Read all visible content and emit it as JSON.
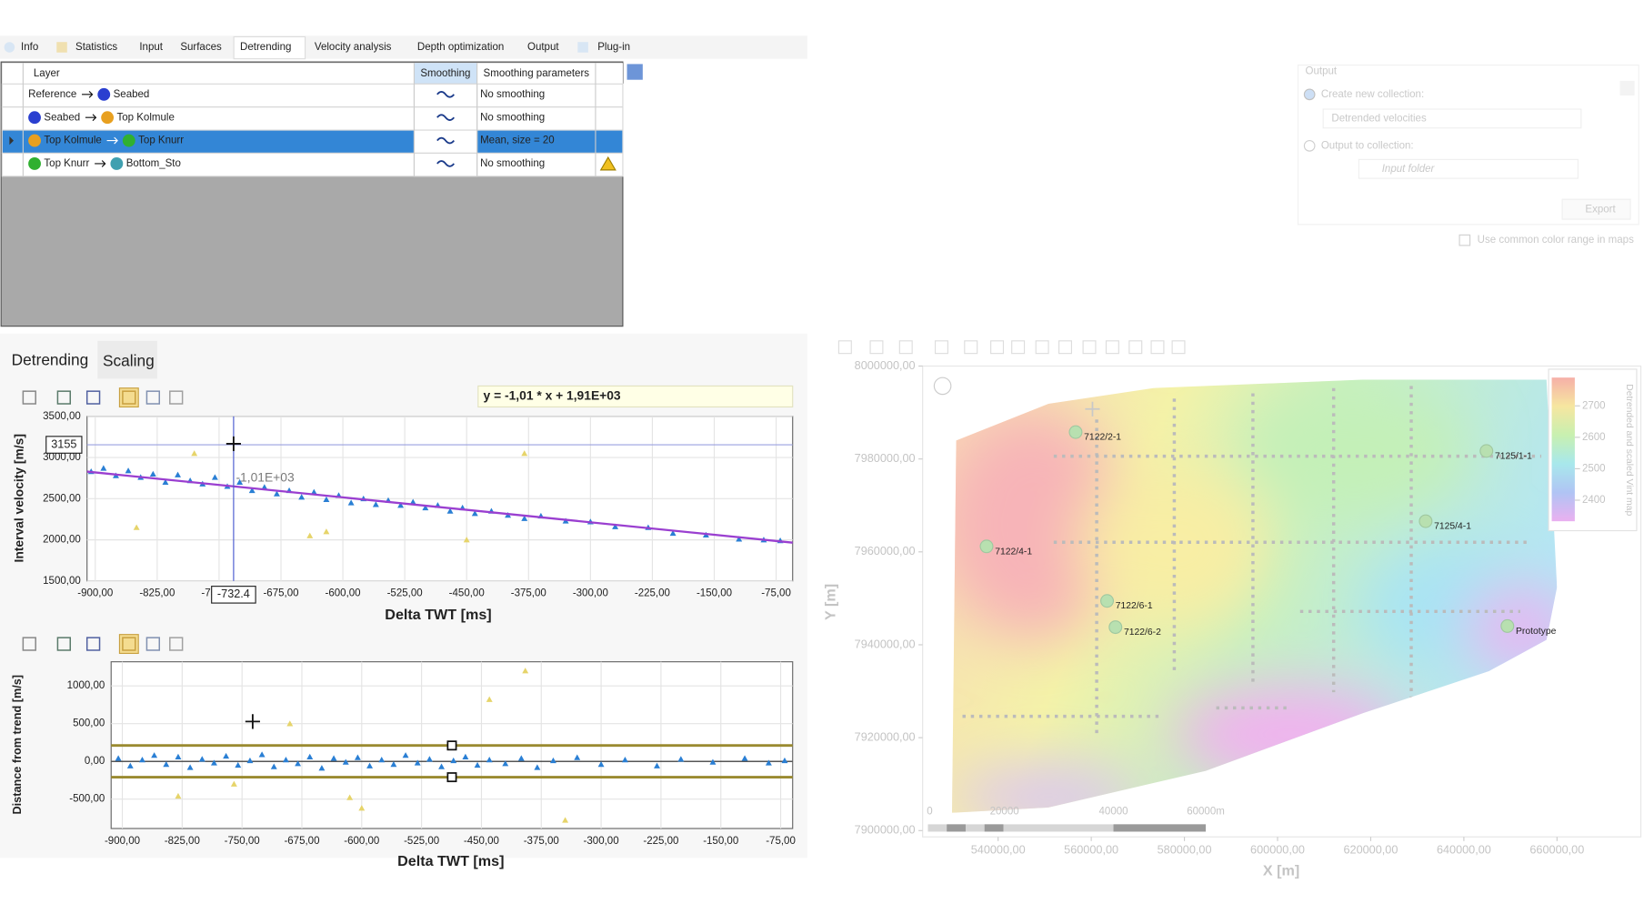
{
  "tabs": [
    "Info",
    "Statistics",
    "Input",
    "Surfaces",
    "Detrending",
    "Velocity analysis",
    "Depth optimization",
    "Output",
    "Plug-in"
  ],
  "layer_table": {
    "headers": [
      "Layer",
      "Smoothing",
      "Smoothing parameters"
    ],
    "rows": [
      {
        "from": "Reference",
        "to": "Seabed",
        "params": "No smoothing"
      },
      {
        "from": "Seabed",
        "to": "Top Kolmule",
        "params": "No smoothing"
      },
      {
        "from": "Top Kolmule",
        "to": "Top Knurr",
        "params": "Mean, size = 20"
      },
      {
        "from": "Top Knurr",
        "to": "Bottom_Sto",
        "params": "No smoothing"
      }
    ]
  },
  "subtabs": [
    "Detrending",
    "Scaling"
  ],
  "trend_chart": {
    "type": "scatter",
    "equation": "y = -1,01 * x + 1,91E+03",
    "annotation": "-1,01E+03",
    "x_label": "Delta TWT [ms]",
    "y_label": "Interval velocity [m/s]",
    "xlim": [
      -910,
      -55
    ],
    "ylim": [
      1500,
      3500
    ],
    "xticks": [
      {
        "value": -900,
        "label": "-900,00"
      },
      {
        "value": -825,
        "label": "-825,00"
      },
      {
        "value": -750,
        "label": "-750,00"
      },
      {
        "value": -675,
        "label": "-675,00"
      },
      {
        "value": -600,
        "label": "-600,00"
      },
      {
        "value": -525,
        "label": "-525,00"
      },
      {
        "value": -450,
        "label": "-450,00"
      },
      {
        "value": -375,
        "label": "-375,00"
      },
      {
        "value": -300,
        "label": "-300,00"
      },
      {
        "value": -225,
        "label": "-225,00"
      },
      {
        "value": -150,
        "label": "-150,00"
      },
      {
        "value": -75,
        "label": "-75,00"
      }
    ],
    "yticks": [
      {
        "value": 1500,
        "label": "1500,00"
      },
      {
        "value": 2000,
        "label": "2000,00"
      },
      {
        "value": 2500,
        "label": "2500,00"
      },
      {
        "value": 3000,
        "label": "3000,00"
      },
      {
        "value": 3500,
        "label": "3500,00"
      }
    ],
    "grid": true,
    "cursor": {
      "x": -732.4,
      "y": 3155
    },
    "trend_line": {
      "color": "#9a3fd0",
      "x": [
        -910,
        -55
      ],
      "y": [
        2829,
        1966
      ]
    },
    "series": [
      {
        "color": "#2a7fd4",
        "x": [
          -905,
          -890,
          -875,
          -860,
          -845,
          -830,
          -815,
          -800,
          -785,
          -770,
          -755,
          -740,
          -725,
          -710,
          -695,
          -680,
          -665,
          -650,
          -635,
          -620,
          -605,
          -590,
          -575,
          -560,
          -545,
          -530,
          -515,
          -500,
          -485,
          -470,
          -455,
          -440,
          -420,
          -400,
          -380,
          -360,
          -330,
          -300,
          -270,
          -230,
          -200,
          -160,
          -120,
          -90,
          -70
        ],
        "y": [
          2830,
          2870,
          2780,
          2840,
          2760,
          2800,
          2700,
          2790,
          2720,
          2680,
          2760,
          2650,
          2700,
          2600,
          2640,
          2560,
          2600,
          2520,
          2580,
          2490,
          2540,
          2450,
          2500,
          2430,
          2480,
          2420,
          2460,
          2390,
          2420,
          2350,
          2390,
          2320,
          2350,
          2300,
          2260,
          2290,
          2230,
          2220,
          2160,
          2150,
          2080,
          2060,
          2010,
          2000,
          1990
        ]
      },
      {
        "color": "#e6d46a",
        "x": [
          -850,
          -780,
          -640,
          -620,
          -450,
          -380
        ],
        "y": [
          2150,
          3050,
          2050,
          2100,
          2000,
          3050
        ]
      }
    ]
  },
  "residual_chart": {
    "type": "scatter",
    "x_label": "Delta TWT [ms]",
    "y_label": "Distance from trend [m/s]",
    "xlim": [
      -914,
      -60
    ],
    "ylim": [
      -890,
      1320
    ],
    "xticks": [
      {
        "value": -900,
        "label": "-900,00"
      },
      {
        "value": -825,
        "label": "-825,00"
      },
      {
        "value": -750,
        "label": "-750,00"
      },
      {
        "value": -675,
        "label": "-675,00"
      },
      {
        "value": -600,
        "label": "-600,00"
      },
      {
        "value": -525,
        "label": "-525,00"
      },
      {
        "value": -450,
        "label": "-450,00"
      },
      {
        "value": -375,
        "label": "-375,00"
      },
      {
        "value": -300,
        "label": "-300,00"
      },
      {
        "value": -225,
        "label": "-225,00"
      },
      {
        "value": -150,
        "label": "-150,00"
      },
      {
        "value": -75,
        "label": "-75,00"
      }
    ],
    "yticks": [
      {
        "value": -500,
        "label": "-500,00"
      },
      {
        "value": 0,
        "label": "0,00"
      },
      {
        "value": 500,
        "label": "500,00"
      },
      {
        "value": 1000,
        "label": "1000,00"
      }
    ],
    "grid": true,
    "band": {
      "lower": -210,
      "upper": 210
    },
    "series": [
      {
        "color": "#2a7fd4",
        "x": [
          -905,
          -890,
          -875,
          -860,
          -845,
          -830,
          -815,
          -800,
          -785,
          -770,
          -755,
          -740,
          -725,
          -710,
          -695,
          -680,
          -665,
          -650,
          -635,
          -620,
          -605,
          -590,
          -575,
          -560,
          -545,
          -530,
          -515,
          -500,
          -485,
          -470,
          -455,
          -440,
          -420,
          -400,
          -380,
          -360,
          -330,
          -300,
          -270,
          -230,
          -200,
          -160,
          -120,
          -90,
          -70
        ],
        "y": [
          40,
          -60,
          20,
          80,
          -40,
          60,
          -80,
          30,
          -20,
          70,
          -50,
          10,
          90,
          -70,
          20,
          -30,
          60,
          -90,
          40,
          -10,
          50,
          -60,
          20,
          -40,
          80,
          -20,
          30,
          -70,
          10,
          60,
          -50,
          20,
          -30,
          40,
          -80,
          10,
          50,
          -40,
          20,
          -60,
          30,
          -10,
          40,
          -20,
          10
        ]
      },
      {
        "color": "#e6d46a",
        "x": [
          -830,
          -760,
          -690,
          -615,
          -600,
          -440,
          -395,
          -345
        ],
        "y": [
          -460,
          -300,
          500,
          -480,
          -620,
          820,
          1200,
          -780
        ]
      }
    ]
  },
  "output_panel": {
    "title": "Output",
    "create_new": "Create new collection:",
    "collection_name": "Detrended velocities",
    "output_to": "Output to collection:",
    "input_folder": "Input folder",
    "export": "Export",
    "common_range": "Use common color range in maps"
  },
  "map": {
    "type": "map",
    "x_label": "X [m]",
    "y_label": "Y [m]",
    "xlim": [
      523800,
      678000
    ],
    "ylim": [
      7900000,
      8000000
    ],
    "xticks": [
      {
        "value": 540000,
        "label": "540000,00"
      },
      {
        "value": 560000,
        "label": "560000,00"
      },
      {
        "value": 580000,
        "label": "580000,00"
      },
      {
        "value": 600000,
        "label": "600000,00"
      },
      {
        "value": 620000,
        "label": "620000,00"
      },
      {
        "value": 640000,
        "label": "640000,00"
      },
      {
        "value": 660000,
        "label": "660000,00"
      }
    ],
    "yticks": [
      {
        "value": 7900000,
        "label": "7900000,00"
      },
      {
        "value": 7920000,
        "label": "7920000,00"
      },
      {
        "value": 7940000,
        "label": "7940000,00"
      },
      {
        "value": 7960000,
        "label": "7960000,00"
      },
      {
        "value": 7980000,
        "label": "7980000,00"
      },
      {
        "value": 8000000,
        "label": "8000000,00"
      }
    ],
    "wells": [
      {
        "label": "7122/2-1",
        "x": 556650,
        "y": 7985780
      },
      {
        "label": "7122/4-1",
        "x": 537525,
        "y": 7961180
      },
      {
        "label": "7122/6-1",
        "x": 563400,
        "y": 7949440
      },
      {
        "label": "7122/6-2",
        "x": 565200,
        "y": 7943800
      },
      {
        "label": "7125/1-1",
        "x": 644850,
        "y": 7981720
      },
      {
        "label": "7125/4-1",
        "x": 631800,
        "y": 7966600
      },
      {
        "label": "Prototype",
        "x": 649350,
        "y": 7944030
      }
    ],
    "legend": {
      "title": "Detrended and scaled Vint map",
      "lim": [
        2333,
        2790
      ],
      "ticks": [
        2400,
        2500,
        2600,
        2700
      ]
    },
    "scale_labels": [
      "0",
      "20000",
      "40000",
      "60000m"
    ]
  }
}
